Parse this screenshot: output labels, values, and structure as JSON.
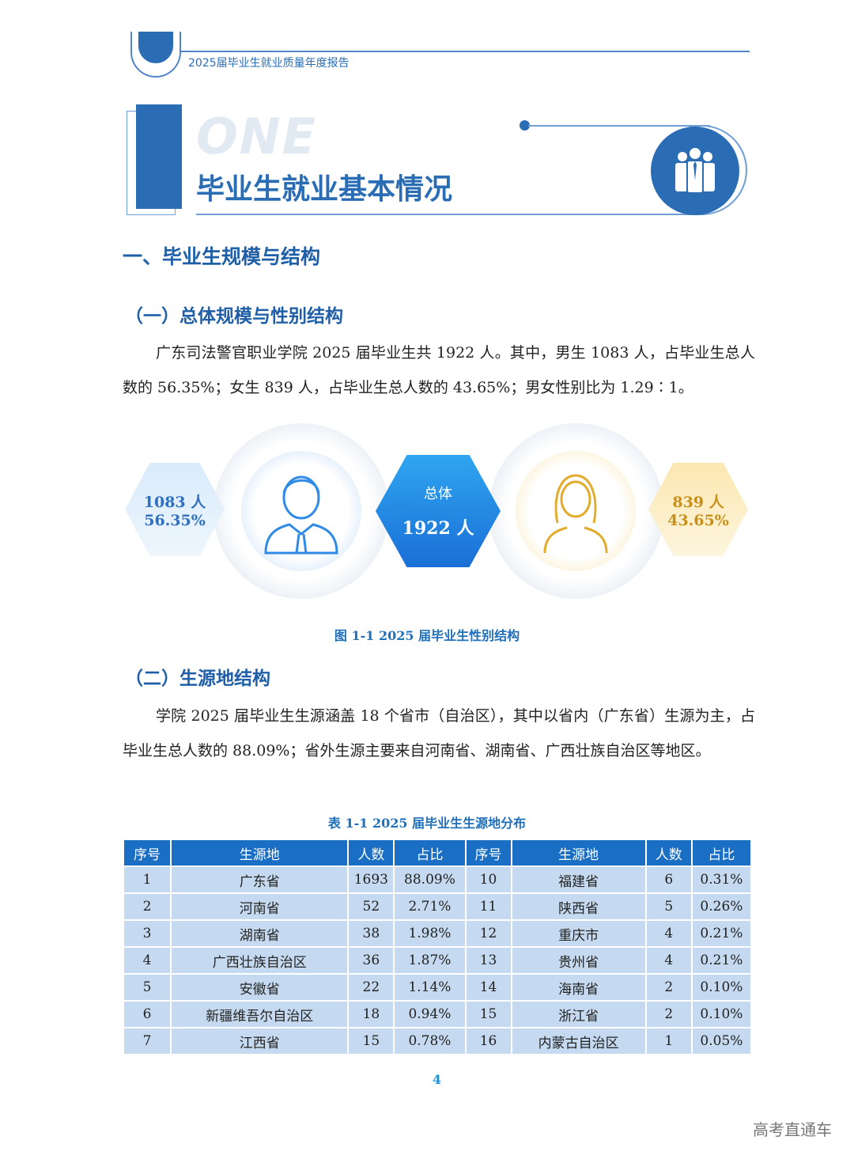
{
  "header": {
    "report_title": "2025届毕业生就业质量年度报告"
  },
  "chapter": {
    "number_word": "ONE",
    "title": "毕业生就业基本情况",
    "icon": "group-people-icon"
  },
  "section1": {
    "title": "一、毕业生规模与结构"
  },
  "sub1": {
    "title": "（一）总体规模与性别结构",
    "para": "广东司法警官职业学院 2025 届毕业生共 1922 人。其中，男生 1083 人，占毕业生总人数的 56.35%；女生 839 人，占毕业生总人数的 43.65%；男女性别比为 1.29∶1。"
  },
  "gender_figure": {
    "male_count": "1083 人",
    "male_pct": "56.35%",
    "total_label": "总体",
    "total_count": "1922 人",
    "female_count": "839 人",
    "female_pct": "43.65%",
    "male_color": "#3a8ee6",
    "female_color": "#e8b84a",
    "caption": "图 1-1  2025 届毕业生性别结构"
  },
  "sub2": {
    "title": "（二）生源地结构",
    "para": "学院 2025 届毕业生生源涵盖 18 个省市（自治区），其中以省内（广东省）生源为主，占毕业生总人数的 88.09%；省外生源主要来自河南省、湖南省、广西壮族自治区等地区。"
  },
  "table": {
    "caption": "表 1-1  2025 届毕业生生源地分布",
    "headers": [
      "序号",
      "生源地",
      "人数",
      "占比",
      "序号",
      "生源地",
      "人数",
      "占比"
    ],
    "rows": [
      [
        "1",
        "广东省",
        "1693",
        "88.09%",
        "10",
        "福建省",
        "6",
        "0.31%"
      ],
      [
        "2",
        "河南省",
        "52",
        "2.71%",
        "11",
        "陕西省",
        "5",
        "0.26%"
      ],
      [
        "3",
        "湖南省",
        "38",
        "1.98%",
        "12",
        "重庆市",
        "4",
        "0.21%"
      ],
      [
        "4",
        "广西壮族自治区",
        "36",
        "1.87%",
        "13",
        "贵州省",
        "4",
        "0.21%"
      ],
      [
        "5",
        "安徽省",
        "22",
        "1.14%",
        "14",
        "海南省",
        "2",
        "0.10%"
      ],
      [
        "6",
        "新疆维吾尔自治区",
        "18",
        "0.94%",
        "15",
        "浙江省",
        "2",
        "0.10%"
      ],
      [
        "7",
        "江西省",
        "15",
        "0.78%",
        "16",
        "内蒙古自治区",
        "1",
        "0.05%"
      ]
    ]
  },
  "page_number": "4",
  "watermark": "高考直通车"
}
